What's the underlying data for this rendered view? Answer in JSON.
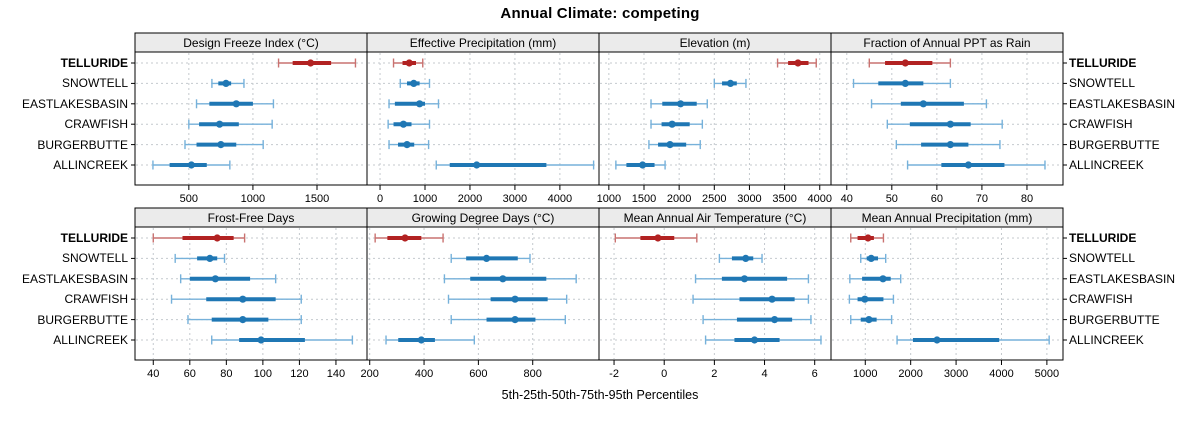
{
  "title": "Annual Climate: competing",
  "xlabel": "5th-25th-50th-75th-95th Percentiles",
  "sites": [
    "TELLURIDE",
    "SNOWTELL",
    "EASTLAKESBASIN",
    "CRAWFISH",
    "BURGERBUTTE",
    "ALLINCREEK"
  ],
  "highlight_site": "TELLURIDE",
  "colors": {
    "highlight": "#B22222",
    "highlight_light": "#C97270",
    "normal": "#1F77B4",
    "normal_light": "#76B1DA",
    "grid": "#C4C9CE",
    "strip_bg": "#EBEBEB",
    "panel_bg": "#FFFFFF",
    "border": "#000000"
  },
  "percentile_labels": [
    "5th",
    "25th",
    "50th",
    "75th",
    "95th"
  ],
  "chart_data": [
    {
      "type": "dot-whisker",
      "title": "Design Freeze Index (°C)",
      "xlim": [
        80,
        1890
      ],
      "ticks": [
        500,
        1000,
        1500
      ],
      "series": [
        {
          "site": "TELLURIDE",
          "p": [
            1200,
            1310,
            1450,
            1610,
            1800
          ]
        },
        {
          "site": "SNOWTELL",
          "p": [
            680,
            730,
            790,
            830,
            930
          ]
        },
        {
          "site": "EASTLAKESBASIN",
          "p": [
            560,
            660,
            870,
            1000,
            1160
          ]
        },
        {
          "site": "CRAWFISH",
          "p": [
            500,
            580,
            740,
            890,
            1150
          ]
        },
        {
          "site": "BURGERBUTTE",
          "p": [
            470,
            560,
            750,
            870,
            1080
          ]
        },
        {
          "site": "ALLINCREEK",
          "p": [
            220,
            350,
            520,
            640,
            820
          ]
        }
      ]
    },
    {
      "type": "dot-whisker",
      "title": "Effective Precipitation (mm)",
      "xlim": [
        -290,
        4870
      ],
      "ticks": [
        0,
        1000,
        2000,
        3000,
        4000
      ],
      "series": [
        {
          "site": "TELLURIDE",
          "p": [
            300,
            500,
            650,
            800,
            950
          ]
        },
        {
          "site": "SNOWTELL",
          "p": [
            450,
            600,
            750,
            880,
            1100
          ]
        },
        {
          "site": "EASTLAKESBASIN",
          "p": [
            200,
            330,
            880,
            1000,
            1300
          ]
        },
        {
          "site": "CRAWFISH",
          "p": [
            180,
            300,
            520,
            700,
            1100
          ]
        },
        {
          "site": "BURGERBUTTE",
          "p": [
            200,
            400,
            600,
            760,
            1080
          ]
        },
        {
          "site": "ALLINCREEK",
          "p": [
            1250,
            1550,
            2150,
            3700,
            4750
          ]
        }
      ]
    },
    {
      "type": "dot-whisker",
      "title": "Elevation (m)",
      "xlim": [
        860,
        4160
      ],
      "ticks": [
        1000,
        1500,
        2000,
        2500,
        3000,
        3500,
        4000
      ],
      "series": [
        {
          "site": "TELLURIDE",
          "p": [
            3400,
            3550,
            3690,
            3840,
            3950
          ]
        },
        {
          "site": "SNOWTELL",
          "p": [
            2500,
            2610,
            2730,
            2820,
            2950
          ]
        },
        {
          "site": "EASTLAKESBASIN",
          "p": [
            1600,
            1760,
            2020,
            2250,
            2400
          ]
        },
        {
          "site": "CRAWFISH",
          "p": [
            1600,
            1750,
            1900,
            2150,
            2330
          ]
        },
        {
          "site": "BURGERBUTTE",
          "p": [
            1570,
            1700,
            1870,
            2100,
            2300
          ]
        },
        {
          "site": "ALLINCREEK",
          "p": [
            1100,
            1250,
            1480,
            1650,
            1800
          ]
        }
      ]
    },
    {
      "type": "dot-whisker",
      "title": "Fraction of Annual PPT as Rain",
      "xlim": [
        36.5,
        88
      ],
      "ticks": [
        40,
        50,
        60,
        70,
        80
      ],
      "series": [
        {
          "site": "TELLURIDE",
          "p": [
            45,
            48.5,
            53,
            59,
            63
          ]
        },
        {
          "site": "SNOWTELL",
          "p": [
            41.5,
            47,
            53,
            57,
            63
          ]
        },
        {
          "site": "EASTLAKESBASIN",
          "p": [
            45.5,
            52,
            57,
            66,
            71
          ]
        },
        {
          "site": "CRAWFISH",
          "p": [
            49,
            54,
            63,
            67.5,
            74.5
          ]
        },
        {
          "site": "BURGERBUTTE",
          "p": [
            51,
            56.5,
            63,
            67,
            74
          ]
        },
        {
          "site": "ALLINCREEK",
          "p": [
            53.5,
            61,
            67,
            75,
            84
          ]
        }
      ]
    },
    {
      "type": "dot-whisker",
      "title": "Frost-Free Days",
      "xlim": [
        30,
        157
      ],
      "ticks": [
        40,
        60,
        80,
        100,
        120,
        140
      ],
      "series": [
        {
          "site": "TELLURIDE",
          "p": [
            40,
            56,
            75,
            84,
            90
          ]
        },
        {
          "site": "SNOWTELL",
          "p": [
            52,
            64,
            71,
            75,
            79
          ]
        },
        {
          "site": "EASTLAKESBASIN",
          "p": [
            55,
            60,
            74,
            93,
            107
          ]
        },
        {
          "site": "CRAWFISH",
          "p": [
            50,
            69,
            89,
            107,
            121
          ]
        },
        {
          "site": "BURGERBUTTE",
          "p": [
            59,
            72,
            89,
            103,
            121
          ]
        },
        {
          "site": "ALLINCREEK",
          "p": [
            72,
            87,
            99,
            123,
            149
          ]
        }
      ]
    },
    {
      "type": "dot-whisker",
      "title": "Growing Degree Days (°C)",
      "xlim": [
        190,
        1044
      ],
      "ticks": [
        200,
        400,
        600,
        800
      ],
      "series": [
        {
          "site": "TELLURIDE",
          "p": [
            220,
            265,
            330,
            390,
            470
          ]
        },
        {
          "site": "SNOWTELL",
          "p": [
            500,
            555,
            630,
            745,
            790
          ]
        },
        {
          "site": "EASTLAKESBASIN",
          "p": [
            475,
            570,
            690,
            850,
            960
          ]
        },
        {
          "site": "CRAWFISH",
          "p": [
            490,
            645,
            735,
            855,
            925
          ]
        },
        {
          "site": "BURGERBUTTE",
          "p": [
            500,
            630,
            735,
            810,
            920
          ]
        },
        {
          "site": "ALLINCREEK",
          "p": [
            260,
            305,
            390,
            440,
            585
          ]
        }
      ]
    },
    {
      "type": "dot-whisker",
      "title": "Mean Annual Air Temperature (°C)",
      "xlim": [
        -2.6,
        6.65
      ],
      "ticks": [
        -2,
        0,
        2,
        4,
        6
      ],
      "series": [
        {
          "site": "TELLURIDE",
          "p": [
            -1.95,
            -0.95,
            -0.25,
            0.4,
            1.3
          ]
        },
        {
          "site": "SNOWTELL",
          "p": [
            2.2,
            2.7,
            3.25,
            3.55,
            3.9
          ]
        },
        {
          "site": "EASTLAKESBASIN",
          "p": [
            1.25,
            2.3,
            3.2,
            4.9,
            5.75
          ]
        },
        {
          "site": "CRAWFISH",
          "p": [
            1.15,
            3.0,
            4.3,
            5.2,
            5.75
          ]
        },
        {
          "site": "BURGERBUTTE",
          "p": [
            1.55,
            2.9,
            4.4,
            5.1,
            5.85
          ]
        },
        {
          "site": "ALLINCREEK",
          "p": [
            1.65,
            2.8,
            3.6,
            4.6,
            6.25
          ]
        }
      ]
    },
    {
      "type": "dot-whisker",
      "title": "Mean Annual Precipitation (mm)",
      "xlim": [
        245,
        5355
      ],
      "ticks": [
        1000,
        2000,
        3000,
        4000,
        5000
      ],
      "series": [
        {
          "site": "TELLURIDE",
          "p": [
            680,
            830,
            1060,
            1190,
            1400
          ]
        },
        {
          "site": "SNOWTELL",
          "p": [
            900,
            1030,
            1130,
            1280,
            1450
          ]
        },
        {
          "site": "EASTLAKESBASIN",
          "p": [
            660,
            930,
            1390,
            1560,
            1780
          ]
        },
        {
          "site": "CRAWFISH",
          "p": [
            650,
            830,
            990,
            1400,
            1620
          ]
        },
        {
          "site": "BURGERBUTTE",
          "p": [
            680,
            900,
            1080,
            1250,
            1580
          ]
        },
        {
          "site": "ALLINCREEK",
          "p": [
            1700,
            2050,
            2580,
            3950,
            5050
          ]
        }
      ]
    }
  ]
}
